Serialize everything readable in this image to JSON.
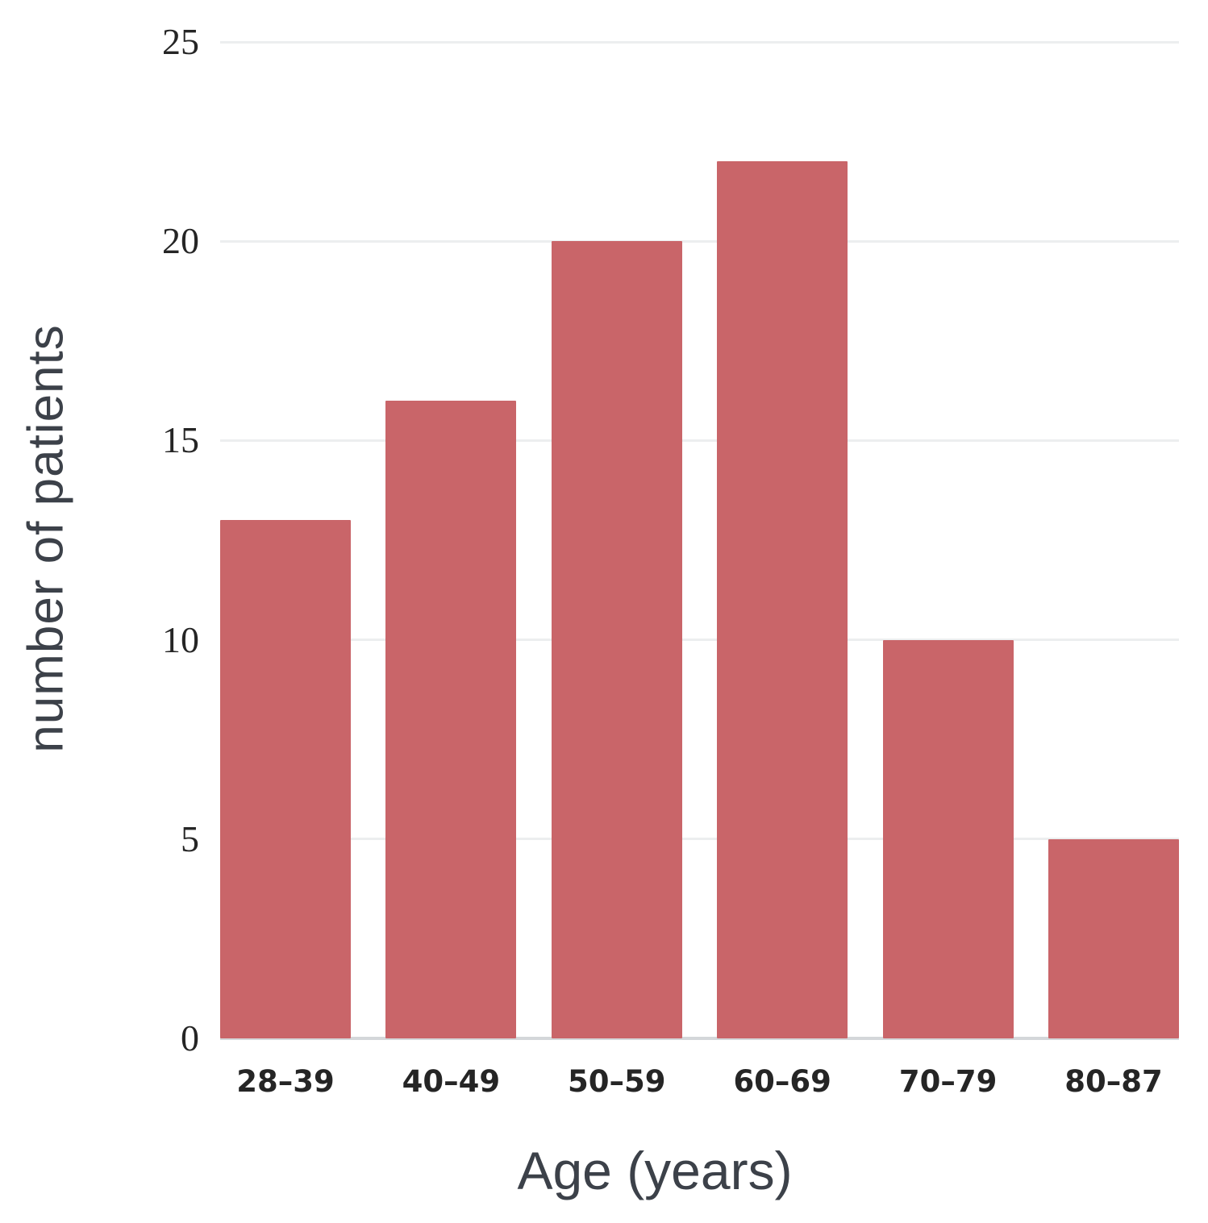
{
  "chart_data": {
    "type": "bar",
    "categories": [
      "28–39",
      "40–49",
      "50–59",
      "60–69",
      "70–79",
      "80–87"
    ],
    "values": [
      13,
      16,
      20,
      22,
      10,
      5
    ],
    "title": "",
    "xlabel": "Age (years)",
    "ylabel": "number of patients",
    "ylim": [
      0,
      25
    ],
    "yticks": [
      0,
      5,
      10,
      15,
      20,
      25
    ],
    "grid": true,
    "legend": "none",
    "colors": {
      "bar": "#c96569",
      "gridline": "#eceeef",
      "baseline": "#d4d7da",
      "tick_label": "#252525",
      "axis_title": "#3c4149"
    }
  }
}
